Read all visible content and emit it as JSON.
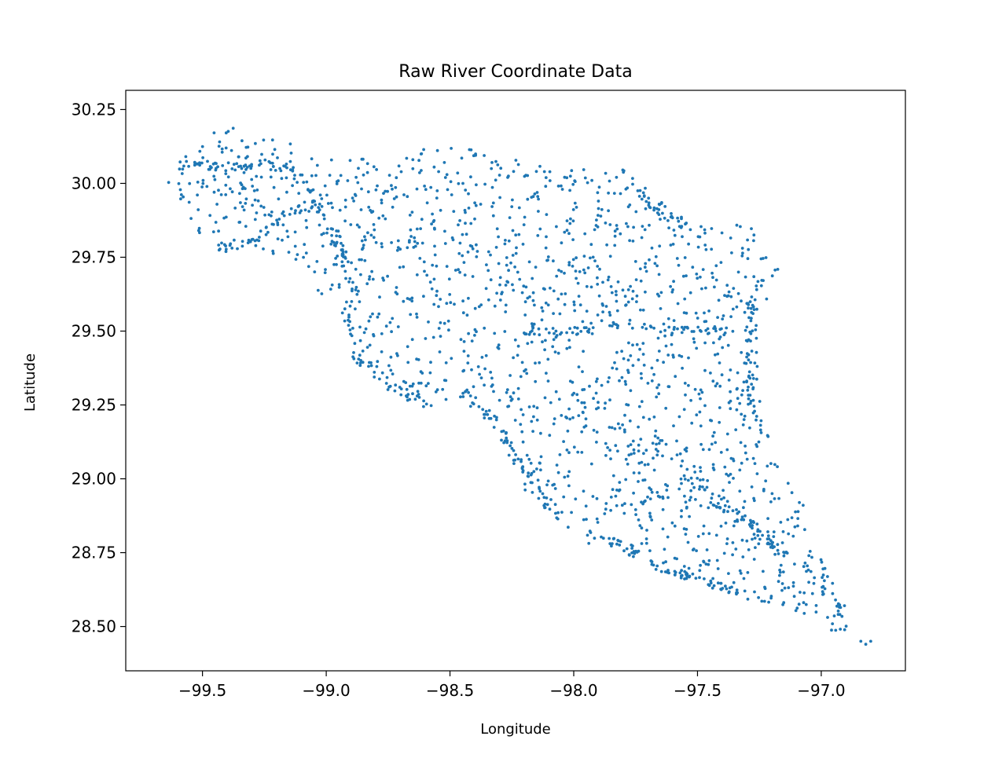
{
  "chart_data": {
    "type": "scatter",
    "title": "Raw River Coordinate Data",
    "xlabel": "Longitude",
    "ylabel": "Latitude",
    "xlim": [
      -99.81,
      -96.66
    ],
    "ylim": [
      28.35,
      30.315
    ],
    "x_ticks": [
      -99.5,
      -99.0,
      -98.5,
      -98.0,
      -97.5,
      -97.0
    ],
    "x_tick_labels": [
      "−99.5",
      "−99.0",
      "−98.5",
      "−98.0",
      "−97.5",
      "−97.0"
    ],
    "y_ticks": [
      28.5,
      28.75,
      29.0,
      29.25,
      29.5,
      29.75,
      30.0,
      30.25
    ],
    "y_tick_labels": [
      "28.50",
      "28.75",
      "29.00",
      "29.25",
      "29.50",
      "29.75",
      "30.00",
      "30.25"
    ],
    "grid": false,
    "legend": false,
    "marker_color": "#1f77b4",
    "region_polygon": [
      [
        -99.66,
        30.0
      ],
      [
        -99.62,
        30.08
      ],
      [
        -99.45,
        30.15
      ],
      [
        -99.46,
        30.21
      ],
      [
        -99.38,
        30.22
      ],
      [
        -99.32,
        30.16
      ],
      [
        -99.2,
        30.15
      ],
      [
        -99.13,
        30.15
      ],
      [
        -99.12,
        30.1
      ],
      [
        -99.0,
        30.08
      ],
      [
        -98.85,
        30.09
      ],
      [
        -98.7,
        30.1
      ],
      [
        -98.65,
        30.12
      ],
      [
        -98.5,
        30.12
      ],
      [
        -98.3,
        30.12
      ],
      [
        -98.22,
        30.08
      ],
      [
        -98.1,
        30.05
      ],
      [
        -97.98,
        30.06
      ],
      [
        -97.85,
        30.03
      ],
      [
        -97.8,
        30.08
      ],
      [
        -97.72,
        30.0
      ],
      [
        -97.6,
        29.9
      ],
      [
        -97.5,
        29.87
      ],
      [
        -97.42,
        29.84
      ],
      [
        -97.3,
        29.88
      ],
      [
        -97.25,
        29.8
      ],
      [
        -97.17,
        29.72
      ],
      [
        -97.22,
        29.6
      ],
      [
        -97.26,
        29.5
      ],
      [
        -97.24,
        29.35
      ],
      [
        -97.23,
        29.22
      ],
      [
        -97.2,
        29.1
      ],
      [
        -97.15,
        29.0
      ],
      [
        -97.08,
        28.95
      ],
      [
        -97.06,
        28.85
      ],
      [
        -97.02,
        28.75
      ],
      [
        -96.98,
        28.7
      ],
      [
        -96.92,
        28.63
      ],
      [
        -96.9,
        28.57
      ],
      [
        -96.88,
        28.5
      ],
      [
        -96.95,
        28.48
      ],
      [
        -97.05,
        28.53
      ],
      [
        -97.15,
        28.57
      ],
      [
        -97.3,
        28.62
      ],
      [
        -97.45,
        28.65
      ],
      [
        -97.6,
        28.67
      ],
      [
        -97.75,
        28.72
      ],
      [
        -97.85,
        28.75
      ],
      [
        -97.95,
        28.78
      ],
      [
        -98.05,
        28.85
      ],
      [
        -98.13,
        28.88
      ],
      [
        -98.2,
        28.95
      ],
      [
        -98.25,
        29.05
      ],
      [
        -98.3,
        29.15
      ],
      [
        -98.35,
        29.2
      ],
      [
        -98.45,
        29.24
      ],
      [
        -98.55,
        29.25
      ],
      [
        -98.65,
        29.25
      ],
      [
        -98.75,
        29.3
      ],
      [
        -98.82,
        29.35
      ],
      [
        -98.9,
        29.4
      ],
      [
        -98.95,
        29.55
      ],
      [
        -99.05,
        29.65
      ],
      [
        -99.15,
        29.75
      ],
      [
        -99.25,
        29.76
      ],
      [
        -99.4,
        29.75
      ],
      [
        -99.5,
        29.82
      ],
      [
        -99.58,
        29.9
      ]
    ],
    "outliers": [
      [
        -96.84,
        28.45
      ],
      [
        -96.82,
        28.44
      ],
      [
        -96.8,
        28.45
      ]
    ],
    "corridors": [
      [
        [
          -99.55,
          30.06
        ],
        [
          -99.3,
          30.06
        ],
        [
          -99.13,
          30.05
        ],
        [
          -99.1,
          30.0
        ],
        [
          -99.02,
          29.9
        ],
        [
          -98.95,
          29.8
        ],
        [
          -98.88,
          29.62
        ],
        [
          -98.9,
          29.5
        ]
      ],
      [
        [
          -99.45,
          29.78
        ],
        [
          -99.3,
          29.8
        ],
        [
          -99.15,
          29.9
        ],
        [
          -99.0,
          29.95
        ]
      ],
      [
        [
          -98.9,
          29.42
        ],
        [
          -98.82,
          29.38
        ],
        [
          -98.75,
          29.32
        ],
        [
          -98.65,
          29.27
        ],
        [
          -98.58,
          29.25
        ]
      ],
      [
        [
          -98.45,
          29.3
        ],
        [
          -98.32,
          29.2
        ],
        [
          -98.26,
          29.1
        ],
        [
          -98.18,
          29.0
        ],
        [
          -98.12,
          28.93
        ],
        [
          -98.05,
          28.87
        ]
      ],
      [
        [
          -98.2,
          29.5
        ],
        [
          -98.0,
          29.5
        ],
        [
          -97.8,
          29.53
        ],
        [
          -97.62,
          29.5
        ],
        [
          -97.45,
          29.5
        ],
        [
          -97.26,
          29.5
        ]
      ],
      [
        [
          -97.95,
          28.8
        ],
        [
          -97.8,
          28.78
        ],
        [
          -97.65,
          28.7
        ],
        [
          -97.5,
          28.66
        ],
        [
          -97.35,
          28.62
        ],
        [
          -97.2,
          28.57
        ]
      ],
      [
        [
          -97.7,
          28.95
        ],
        [
          -97.55,
          28.93
        ],
        [
          -97.4,
          28.9
        ],
        [
          -97.28,
          28.85
        ],
        [
          -97.2,
          28.8
        ]
      ],
      [
        [
          -97.55,
          29.0
        ],
        [
          -97.45,
          28.95
        ],
        [
          -97.3,
          28.85
        ],
        [
          -97.15,
          28.75
        ],
        [
          -97.05,
          28.7
        ],
        [
          -96.98,
          28.62
        ],
        [
          -96.92,
          28.55
        ],
        [
          -96.89,
          28.5
        ]
      ],
      [
        [
          -97.25,
          29.68
        ],
        [
          -97.28,
          29.55
        ],
        [
          -97.3,
          29.4
        ],
        [
          -97.28,
          29.25
        ],
        [
          -97.22,
          29.12
        ]
      ],
      [
        [
          -97.8,
          30.02
        ],
        [
          -97.7,
          29.95
        ],
        [
          -97.6,
          29.88
        ],
        [
          -97.52,
          29.85
        ]
      ]
    ],
    "point_counts": {
      "region_fill": 1650,
      "corridor": 560
    }
  }
}
